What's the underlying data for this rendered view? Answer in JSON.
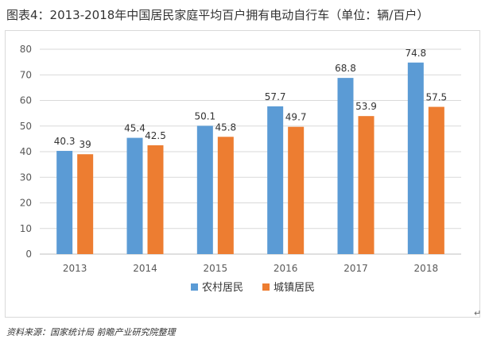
{
  "title": "图表4：2013-2018年中国居民家庭平均百户拥有电动自行车（单位：辆/百户）",
  "source": "资料来源：国家统计局 前瞻产业研究院整理",
  "enter_mark": "↵",
  "colors": {
    "rural": "#5b9bd5",
    "urban": "#ed7d31",
    "grid": "#d9d9d9",
    "axis": "#bfbfbf",
    "text": "#595959"
  },
  "chart_data": {
    "type": "bar",
    "categories": [
      "2013",
      "2014",
      "2015",
      "2016",
      "2017",
      "2018"
    ],
    "series": [
      {
        "name": "农村居民",
        "values": [
          40.3,
          45.4,
          50.1,
          57.7,
          68.8,
          74.8
        ],
        "labels": [
          "40.3",
          "45.4",
          "50.1",
          "57.7",
          "68.8",
          "74.8"
        ]
      },
      {
        "name": "城镇居民",
        "values": [
          39,
          42.5,
          45.8,
          49.7,
          53.9,
          57.5
        ],
        "labels": [
          "39",
          "42.5",
          "45.8",
          "49.7",
          "53.9",
          "57.5"
        ]
      }
    ],
    "ylim": [
      0,
      80
    ],
    "yticks": [
      0,
      10,
      20,
      30,
      40,
      50,
      60,
      70,
      80
    ],
    "grid": true,
    "legend": "bottom"
  }
}
